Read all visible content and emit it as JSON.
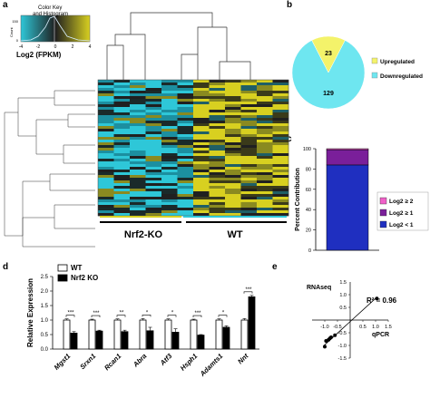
{
  "panels": {
    "a": "a",
    "b": "b",
    "c": "c",
    "d": "d",
    "e": "e"
  },
  "panel_a": {
    "key_title": "Color Key\nand Histogram",
    "key_ylabel": "Count",
    "key_yticks": [
      "0",
      "150"
    ],
    "key_xticks": [
      "-4",
      "-2",
      "0",
      "2",
      "4"
    ],
    "key_xlabel": "Log2 (FPKM)",
    "group_ko": "Nrf2-KO",
    "group_wt": "WT",
    "colors": {
      "low": "#2ec7d8",
      "mid": "#1f1f1f",
      "high": "#d8d020"
    }
  },
  "chart_data": [
    {
      "id": "b",
      "type": "pie",
      "slices": [
        {
          "label": "Downregulated",
          "value": 129,
          "color": "#6ee6f0"
        },
        {
          "label": "Upregulated",
          "value": 23,
          "color": "#f4f36a"
        }
      ],
      "legend_placement": "right"
    },
    {
      "id": "c",
      "type": "bar",
      "stacked": true,
      "ylabel": "Percent Contribution",
      "ylim": [
        0,
        100
      ],
      "yticks": [
        "0",
        "20",
        "40",
        "60",
        "80",
        "100"
      ],
      "series": [
        {
          "name": "Log2 < 1",
          "value": 84,
          "color": "#1f2fc0"
        },
        {
          "name": "Log2 ≥ 1",
          "value": 15,
          "color": "#7a1f9a"
        },
        {
          "name": "Log2 ≥ 2",
          "value": 1,
          "color": "#f060c8"
        }
      ],
      "legend_placement": "right"
    },
    {
      "id": "d",
      "type": "bar",
      "ylabel": "Relative Expression",
      "ylim": [
        0,
        2.5
      ],
      "yticks": [
        "0.0",
        "0.5",
        "1.0",
        "1.5",
        "2.0",
        "2.5"
      ],
      "categories": [
        "Mgst1",
        "Srxn1",
        "Rcan1",
        "Abra",
        "Atf3",
        "Hsph1",
        "Adamts1",
        "Nnt"
      ],
      "series": [
        {
          "name": "WT",
          "values": [
            1.0,
            1.0,
            1.0,
            1.0,
            1.0,
            1.0,
            1.0,
            1.0
          ],
          "color": "#ffffff"
        },
        {
          "name": "Nrf2 KO",
          "values": [
            0.55,
            0.62,
            0.6,
            0.63,
            0.58,
            0.48,
            0.75,
            1.8
          ],
          "color": "#000000"
        }
      ],
      "errors_wt": [
        0.04,
        0.03,
        0.04,
        0.05,
        0.04,
        0.03,
        0.04,
        0.05
      ],
      "errors_ko": [
        0.05,
        0.03,
        0.05,
        0.12,
        0.12,
        0.02,
        0.05,
        0.05
      ],
      "significance": [
        "***",
        "***",
        "**",
        "*",
        "*",
        "***",
        "*",
        "***"
      ],
      "legend_placement": "top-left"
    },
    {
      "id": "e",
      "type": "scatter",
      "xlabel": "qPCR",
      "ylabel": "RNAseq",
      "annotation": "R² = 0.96",
      "xlim": [
        -1.5,
        1.5
      ],
      "ylim": [
        -1.5,
        1.5
      ],
      "xticks": [
        "-1.0",
        "-0.5",
        "0.5",
        "1.0",
        "1.5"
      ],
      "yticks": [
        "1.0",
        "0.5",
        "-0.5",
        "-1.0",
        "-1.5"
      ],
      "points": [
        [
          -1.0,
          -1.05
        ],
        [
          -0.95,
          -0.82
        ],
        [
          -0.85,
          -0.78
        ],
        [
          -0.8,
          -0.72
        ],
        [
          -0.75,
          -0.68
        ],
        [
          -0.6,
          -0.6
        ],
        [
          1.05,
          0.85
        ]
      ]
    }
  ]
}
